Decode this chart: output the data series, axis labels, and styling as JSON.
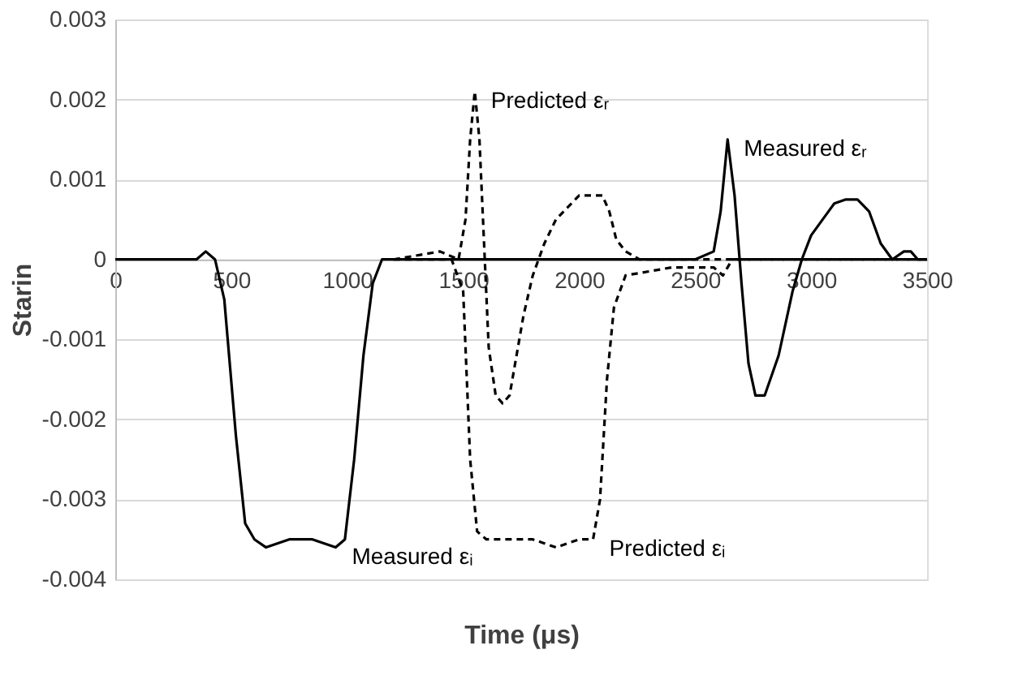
{
  "chart_data": {
    "type": "line",
    "xlabel": "Time (μs)",
    "ylabel": "Starin",
    "xlim": [
      0,
      3500
    ],
    "xticks": [
      0,
      500,
      {
        "value": 1000,
        "label": "1000"
      },
      {
        "value": 1500,
        "label": "1500"
      },
      {
        "value": 2000,
        "label": "2000"
      },
      {
        "value": 2500,
        "label": "2500"
      },
      {
        "value": 3000,
        "label": "3000"
      },
      {
        "value": 3500,
        "label": "3500"
      }
    ],
    "ylim": [
      -0.004,
      0.003
    ],
    "yticks": [
      -0.004,
      -0.003,
      -0.002,
      -0.001,
      0,
      0.001,
      0.002,
      0.003
    ],
    "grid": "y",
    "marker": "none",
    "series": [
      {
        "color": "#000000",
        "line_style": "solid",
        "x": [
          0,
          300,
          350,
          390,
          430,
          470,
          520,
          560,
          600,
          650,
          750,
          850,
          950,
          990,
          1030,
          1070,
          1110,
          1150,
          1300,
          1500,
          1700,
          1800,
          1900,
          2100,
          2300,
          2500,
          2580,
          2610,
          2640,
          2670,
          2700,
          2730,
          2760,
          2800,
          2860,
          2920,
          2960,
          3000,
          3050,
          3100,
          3150,
          3200,
          3250,
          3300,
          3350,
          3400,
          3430,
          3460,
          3500
        ],
        "values": [
          0,
          0,
          0,
          0.0001,
          0,
          -0.0005,
          -0.0022,
          -0.0033,
          -0.0035,
          -0.0036,
          -0.0035,
          -0.0035,
          -0.0036,
          -0.0035,
          -0.0025,
          -0.0012,
          -0.0003,
          0,
          0,
          0,
          0,
          0,
          0,
          0,
          0,
          0,
          0.0001,
          0.0006,
          0.0015,
          0.0008,
          -0.0003,
          -0.0013,
          -0.0017,
          -0.0017,
          -0.0012,
          -0.0004,
          0,
          0.0003,
          0.0005,
          0.0007,
          0.00075,
          0.00075,
          0.0006,
          0.0002,
          0,
          0.0001,
          0.0001,
          0,
          0
        ]
      },
      {
        "color": "#000000",
        "line_style": "dashed",
        "x": [
          1200,
          1400,
          1480,
          1510,
          1530,
          1550,
          1570,
          1590,
          1610,
          1640,
          1670,
          1700,
          1730,
          1760,
          1800,
          1850,
          1900,
          1950,
          2000,
          2050,
          2100,
          2130,
          2160,
          2200,
          2260,
          2350,
          2450,
          2550,
          2600,
          2650,
          2700,
          3500
        ],
        "values": [
          0,
          0.0001,
          0,
          0.0005,
          0.0015,
          0.0021,
          0.0015,
          0.0002,
          -0.0011,
          -0.0017,
          -0.0018,
          -0.0017,
          -0.0012,
          -0.0007,
          -0.0002,
          0.0002,
          0.0005,
          0.00065,
          0.0008,
          0.0008,
          0.0008,
          0.0006,
          0.00025,
          0.0001,
          0,
          0,
          0,
          0,
          0,
          0,
          0,
          0
        ]
      },
      {
        "color": "#000000",
        "line_style": "dashed",
        "x": [
          1200,
          1450,
          1500,
          1530,
          1560,
          1600,
          1700,
          1800,
          1900,
          2000,
          2060,
          2090,
          2120,
          2150,
          2200,
          2300,
          2400,
          2500,
          2580,
          2620,
          2660,
          2700,
          3500
        ],
        "values": [
          0,
          0,
          -0.0004,
          -0.0025,
          -0.0034,
          -0.0035,
          -0.0035,
          -0.0035,
          -0.0036,
          -0.0035,
          -0.0035,
          -0.003,
          -0.0015,
          -0.0006,
          -0.0002,
          -0.00015,
          -0.0001,
          -0.0001,
          -0.0001,
          -0.0002,
          0,
          0,
          0
        ]
      }
    ],
    "annotations": [
      {
        "text": "Predicted εᵣ",
        "x": 1550,
        "y": 0.0021
      },
      {
        "text": "Measured εᵣ",
        "x": 2640,
        "y": 0.0015
      },
      {
        "text": "Measured εᵢ",
        "x": 950,
        "y": -0.0036
      },
      {
        "text": "Predicted εᵢ",
        "x": 2060,
        "y": -0.0035
      }
    ]
  }
}
